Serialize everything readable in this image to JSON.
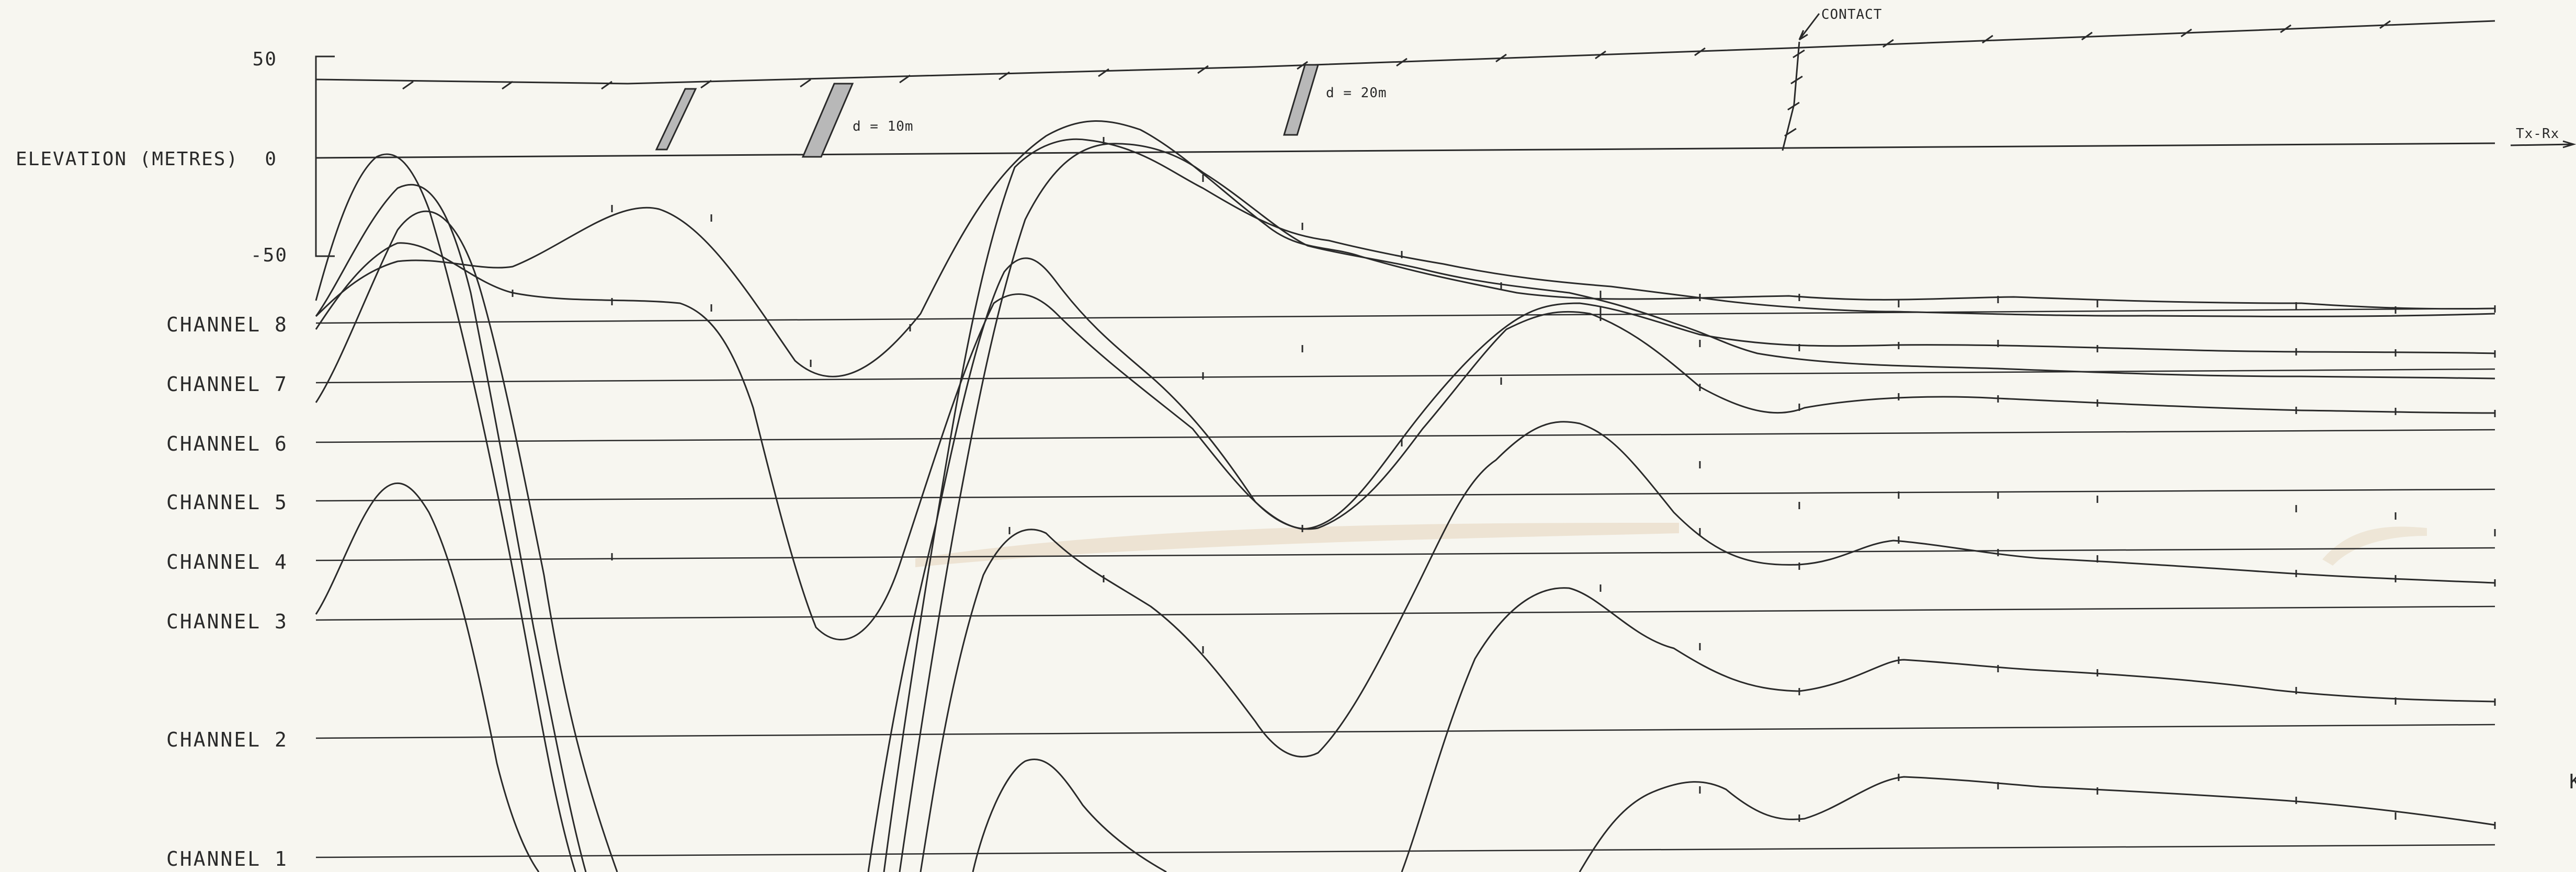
{
  "figure": {
    "elevation_axis": {
      "label": "ELEVATION (METRES)",
      "ticks": [
        "50",
        "0",
        "-50"
      ]
    },
    "channels": [
      "CHANNEL 8",
      "CHANNEL 7",
      "CHANNEL 6",
      "CHANNEL 5",
      "CHANNEL 4",
      "CHANNEL 3",
      "CHANNEL 2",
      "CHANNEL 1"
    ],
    "annotations": {
      "contact": "CONTACT",
      "dike_1": "d = 10m",
      "dike_2": "d = 20m",
      "tx_rx": "Tx-Rx",
      "edge_letter": "K"
    }
  },
  "colors": {
    "ink": "#2a2a2a",
    "paper": "#f7f6f0",
    "stain": "#e3d6bf"
  }
}
